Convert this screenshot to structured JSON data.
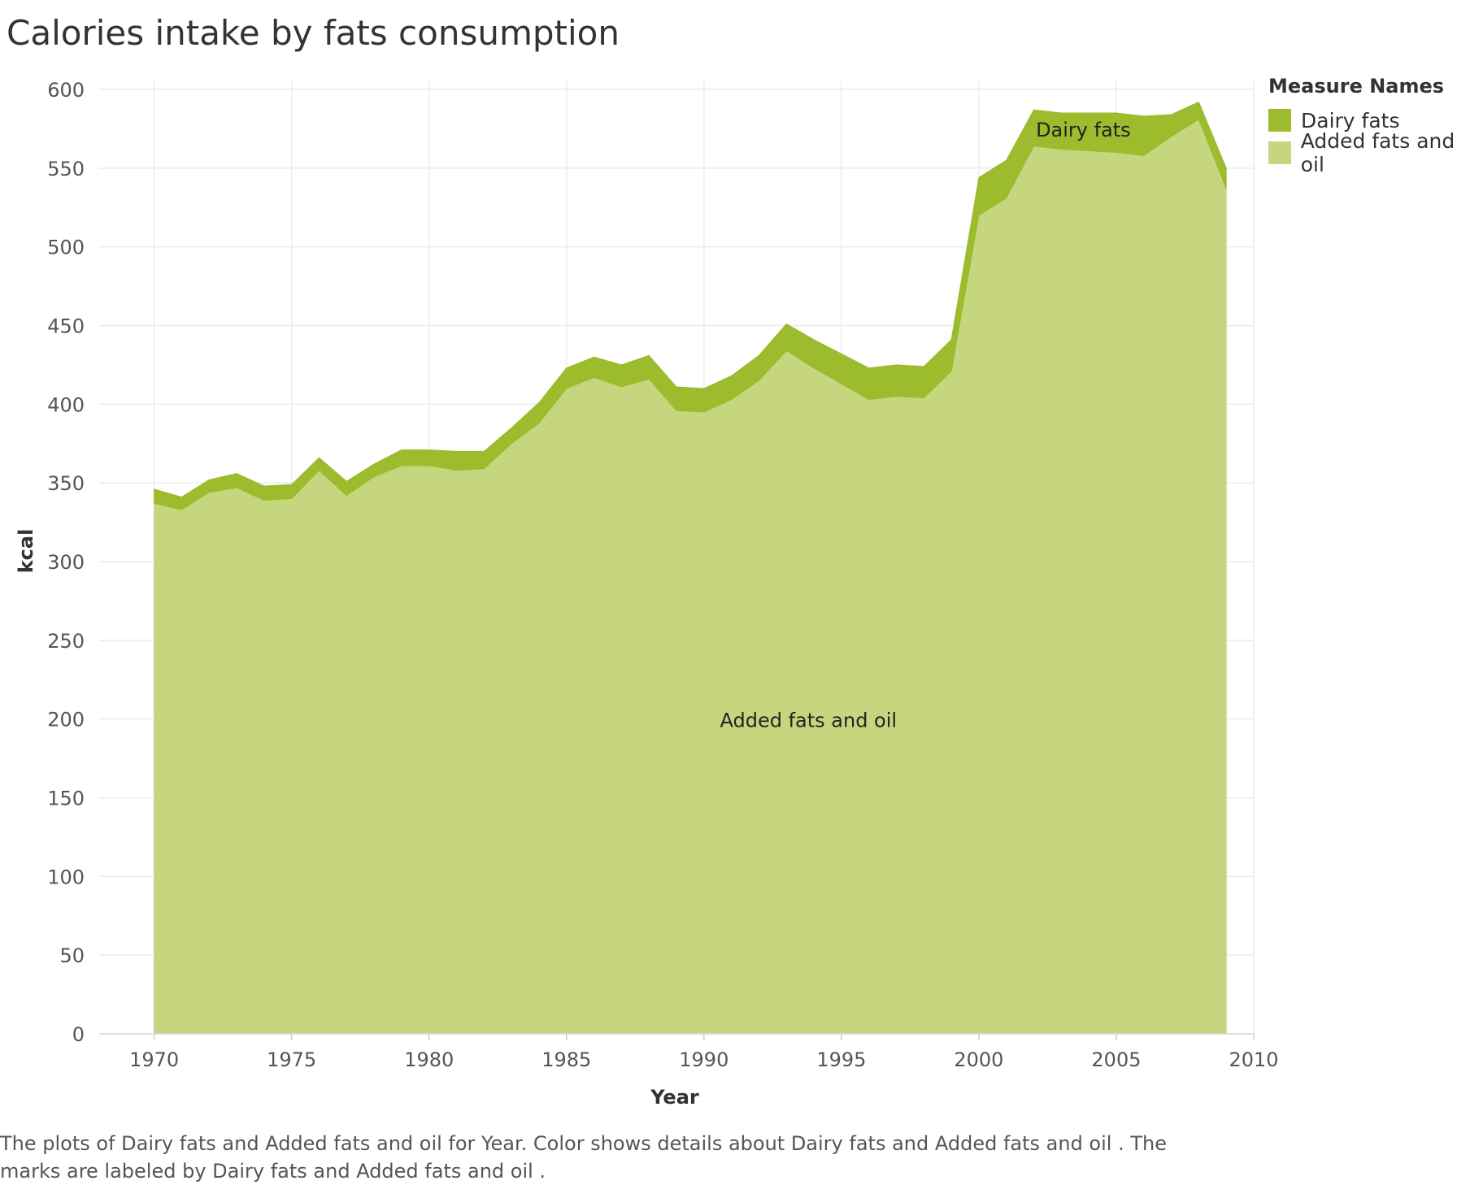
{
  "title": "Calories intake by fats consumption",
  "legend": {
    "title": "Measure Names",
    "items": [
      {
        "label": "Dairy fats",
        "color": "#9cbb2d"
      },
      {
        "label": "Added fats and oil",
        "color": "#c6d67e"
      }
    ]
  },
  "caption": "The plots of Dairy fats and Added fats and oil  for Year.  Color shows details about Dairy fats and Added fats and oil .  The marks are labeled by Dairy fats and Added fats and oil .",
  "chart_data": {
    "type": "area",
    "stacked": true,
    "xlabel": "Year",
    "ylabel": "kcal",
    "xlim": [
      1968,
      2010
    ],
    "ylim": [
      0,
      600
    ],
    "xticks": [
      1970,
      1975,
      1980,
      1985,
      1990,
      1995,
      2000,
      2005,
      2010
    ],
    "yticks": [
      0,
      50,
      100,
      150,
      200,
      250,
      300,
      350,
      400,
      450,
      500,
      550,
      600
    ],
    "grid": true,
    "legend_position": "top-right",
    "x": [
      1970,
      1971,
      1972,
      1973,
      1974,
      1975,
      1976,
      1977,
      1978,
      1979,
      1980,
      1981,
      1982,
      1983,
      1984,
      1985,
      1986,
      1987,
      1988,
      1989,
      1990,
      1991,
      1992,
      1993,
      1994,
      1995,
      1996,
      1997,
      1998,
      1999,
      2000,
      2001,
      2002,
      2003,
      2004,
      2005,
      2006,
      2007,
      2008,
      2009
    ],
    "series": [
      {
        "name": "Added fats and oil",
        "color": "#c6d67e",
        "values": [
          337,
          333,
          344,
          347,
          339,
          340,
          358,
          342,
          354,
          361,
          361,
          358,
          359,
          375,
          388,
          410,
          417,
          411,
          416,
          396,
          395,
          403,
          415,
          434,
          423,
          413,
          403,
          405,
          404,
          421,
          520,
          531,
          564,
          562,
          561,
          560,
          558,
          570,
          581,
          537
        ]
      },
      {
        "name": "Dairy fats",
        "color": "#9cbb2d",
        "values": [
          9,
          8,
          8,
          9,
          9,
          9,
          8,
          9,
          8,
          10,
          10,
          12,
          11,
          10,
          13,
          13,
          13,
          14,
          15,
          15,
          15,
          15,
          16,
          17,
          18,
          19,
          20,
          20,
          20,
          20,
          24,
          24,
          23,
          23,
          24,
          25,
          25,
          14,
          11,
          13
        ]
      }
    ],
    "annotations": [
      {
        "text": "Dairy fats",
        "x": 2003.8,
        "y": 570
      },
      {
        "text": "Added fats and oil",
        "x": 1993.8,
        "y": 195
      }
    ]
  }
}
